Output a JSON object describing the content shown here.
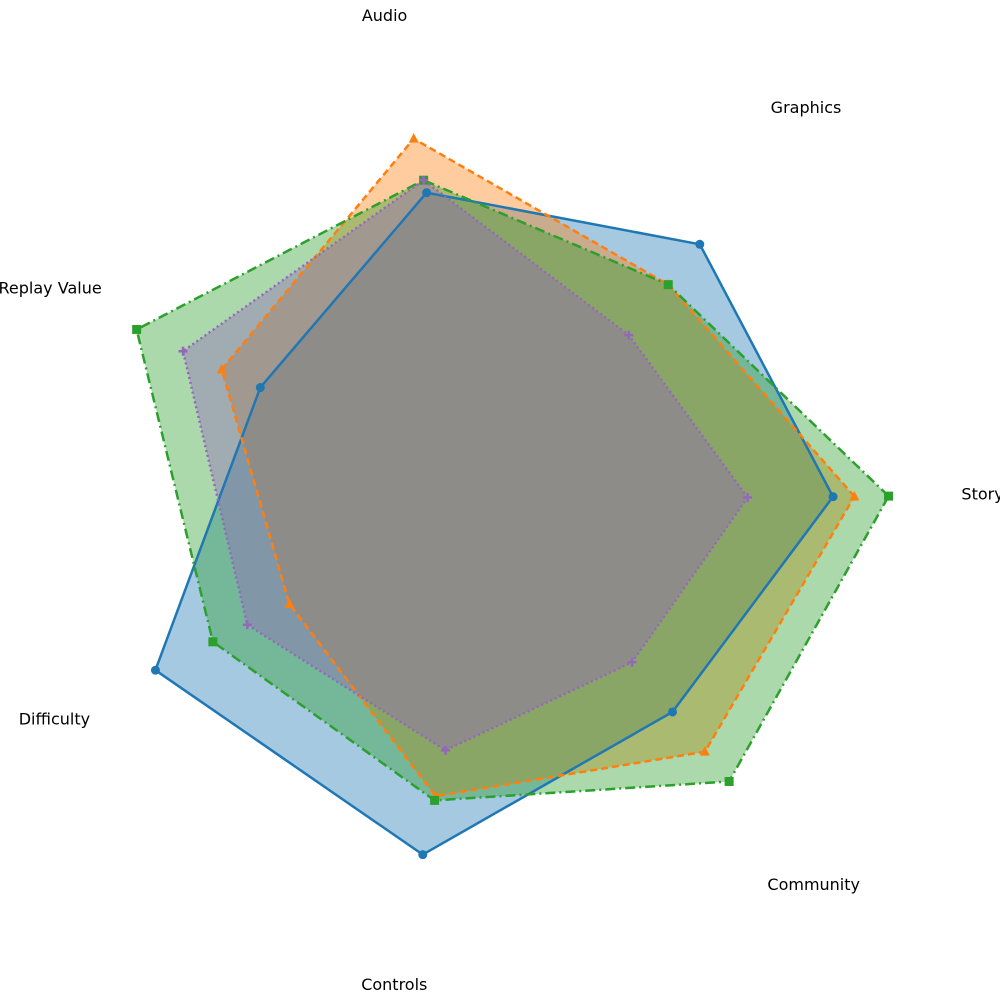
{
  "chart_data": {
    "type": "radar",
    "title": "",
    "axes": [
      "Storyline",
      "Graphics",
      "Audio",
      "Replay Value",
      "Difficulty",
      "Controls",
      "Community"
    ],
    "rmax": 10,
    "grid": false,
    "legend": false,
    "series": [
      {
        "color": "#1f77b4",
        "line_style": "solid",
        "marker": "circle",
        "values": [
          7.8,
          7.6,
          7.4,
          6.2,
          9.0,
          8.5,
          6.4
        ]
      },
      {
        "color": "#ff7f0e",
        "line_style": "dashed",
        "marker": "triangle",
        "values": [
          8.3,
          6.4,
          8.7,
          7.2,
          5.5,
          7.1,
          7.6
        ]
      },
      {
        "color": "#2ca02c",
        "line_style": "dashdot",
        "marker": "square",
        "values": [
          9.1,
          6.4,
          7.7,
          9.4,
          7.5,
          7.2,
          8.5
        ]
      },
      {
        "color": "#9467bd",
        "line_style": "dotted",
        "marker": "plus",
        "values": [
          5.8,
          4.9,
          7.7,
          8.2,
          6.6,
          6.0,
          4.9
        ]
      }
    ]
  }
}
